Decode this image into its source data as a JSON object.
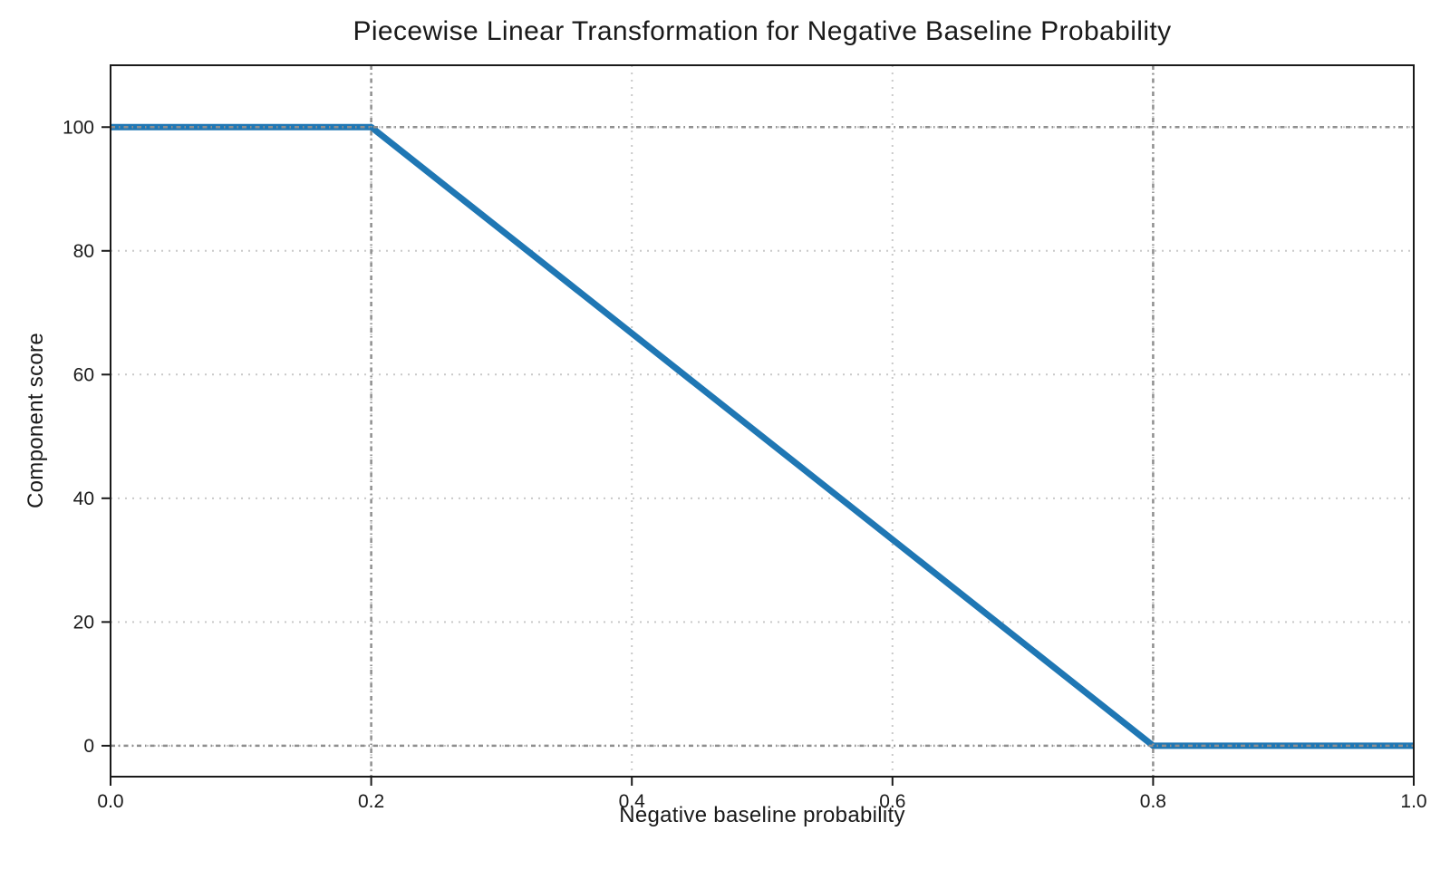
{
  "chart_data": {
    "type": "line",
    "title": "Piecewise Linear Transformation for Negative Baseline Probability",
    "xlabel": "Negative baseline probability",
    "ylabel": "Component score",
    "xlim": [
      0.0,
      1.0
    ],
    "ylim": [
      -5,
      110
    ],
    "x_ticks": [
      0.0,
      0.2,
      0.4,
      0.6,
      0.8,
      1.0
    ],
    "x_tick_labels": [
      "0.0",
      "0.2",
      "0.4",
      "0.6",
      "0.8",
      "1.0"
    ],
    "y_ticks": [
      0,
      20,
      40,
      60,
      80,
      100
    ],
    "y_tick_labels": [
      "0",
      "20",
      "40",
      "60",
      "80",
      "100"
    ],
    "grid": true,
    "legend": false,
    "series": [
      {
        "name": "component-score-curve",
        "x": [
          0.0,
          0.2,
          0.8,
          1.0
        ],
        "y": [
          100,
          100,
          0,
          0
        ],
        "color": "#1f77b4",
        "line_width": 7
      }
    ],
    "reference_lines": {
      "vertical_x": [
        0.2,
        0.8
      ],
      "horizontal_y": [
        0,
        100
      ],
      "color": "#8f8f8f",
      "style": "dash-dot"
    },
    "style": {
      "grid_color": "#c9c9c9",
      "spine_color": "#1a1a1a",
      "tick_color": "#1a1a1a",
      "text_color": "#1a1a1a",
      "background": "#ffffff"
    }
  }
}
